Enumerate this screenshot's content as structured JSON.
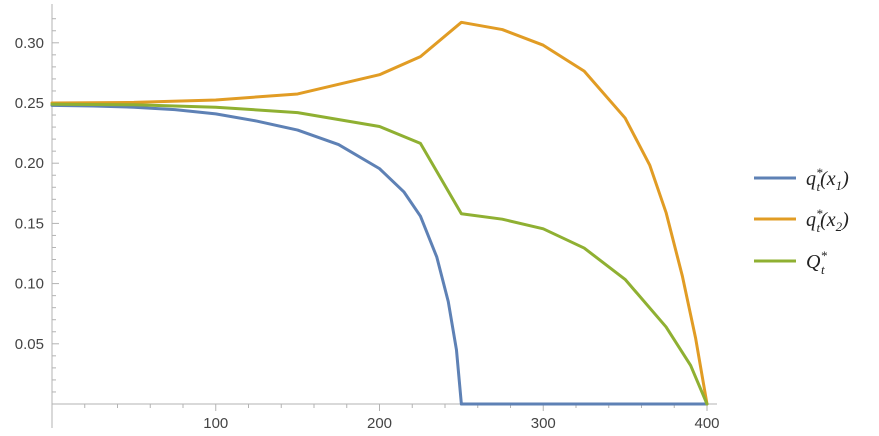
{
  "chart_data": {
    "type": "line",
    "x_ticks": [
      100,
      200,
      300,
      400
    ],
    "y_ticks": [
      0.05,
      0.1,
      0.15,
      0.2,
      0.25,
      0.3
    ],
    "y_tick_labels": [
      "0.05",
      "0.10",
      "0.15",
      "0.20",
      "0.25",
      "0.30"
    ],
    "xlim": [
      0,
      405
    ],
    "ylim": [
      0,
      0.328
    ],
    "grid": false,
    "legend_position": "right",
    "series": [
      {
        "name": "q*t(x1)",
        "legend_main": "q",
        "legend_sup": "*",
        "legend_sub": "t",
        "legend_arg": "(x",
        "legend_arg_sub": "1",
        "legend_close": ")",
        "color": "#5E81B5",
        "points": [
          [
            0,
            0.248
          ],
          [
            25,
            0.2475
          ],
          [
            50,
            0.2465
          ],
          [
            75,
            0.2445
          ],
          [
            100,
            0.241
          ],
          [
            125,
            0.235
          ],
          [
            150,
            0.2275
          ],
          [
            175,
            0.2155
          ],
          [
            200,
            0.1955
          ],
          [
            215,
            0.176
          ],
          [
            225,
            0.156
          ],
          [
            235,
            0.122
          ],
          [
            242,
            0.085
          ],
          [
            247,
            0.045
          ],
          [
            250,
            0.0
          ]
        ],
        "tail": [
          [
            250,
            0.0
          ],
          [
            400,
            0.0
          ]
        ]
      },
      {
        "name": "q*t(x2)",
        "legend_main": "q",
        "legend_sup": "*",
        "legend_sub": "t",
        "legend_arg": "(x",
        "legend_arg_sub": "2",
        "legend_close": ")",
        "color": "#E19C24",
        "points": [
          [
            0,
            0.25
          ],
          [
            50,
            0.2505
          ],
          [
            100,
            0.2525
          ],
          [
            150,
            0.2575
          ],
          [
            200,
            0.2735
          ],
          [
            225,
            0.2885
          ],
          [
            250,
            0.317
          ],
          [
            275,
            0.311
          ],
          [
            300,
            0.298
          ],
          [
            325,
            0.2765
          ],
          [
            350,
            0.2375
          ],
          [
            365,
            0.1985
          ],
          [
            375,
            0.159
          ],
          [
            385,
            0.106
          ],
          [
            393,
            0.055
          ],
          [
            400,
            0.0
          ]
        ]
      },
      {
        "name": "Q*t",
        "legend_main": "Q",
        "legend_sup": "*",
        "legend_sub": "t",
        "legend_arg": "",
        "legend_arg_sub": "",
        "legend_close": "",
        "color": "#8FB032",
        "points": [
          [
            0,
            0.249
          ],
          [
            50,
            0.2485
          ],
          [
            100,
            0.2465
          ],
          [
            150,
            0.242
          ],
          [
            200,
            0.2305
          ],
          [
            225,
            0.2165
          ],
          [
            250,
            0.158
          ],
          [
            275,
            0.1535
          ],
          [
            300,
            0.1455
          ],
          [
            325,
            0.1295
          ],
          [
            350,
            0.1035
          ],
          [
            375,
            0.064
          ],
          [
            390,
            0.032
          ],
          [
            400,
            0.0
          ]
        ]
      }
    ]
  }
}
